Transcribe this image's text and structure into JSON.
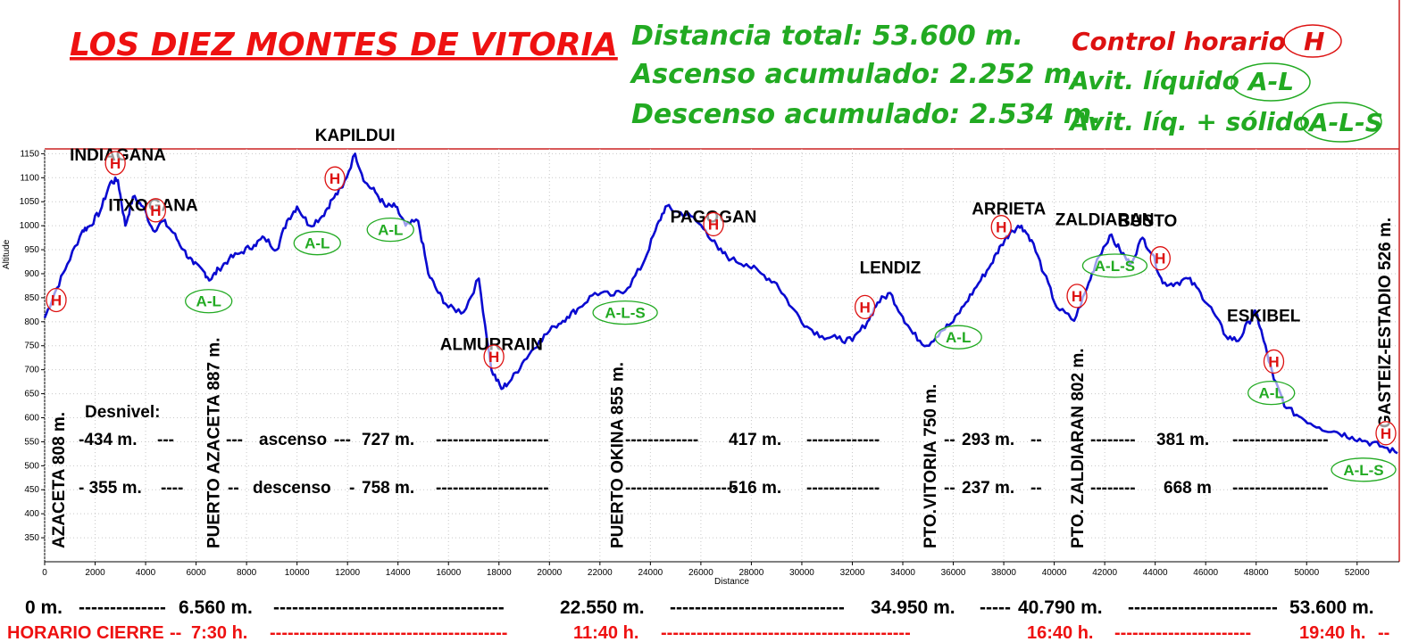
{
  "header": {
    "title": "LOS DIEZ MONTES DE VITORIA",
    "stats": [
      "Distancia total: 53.600 m.",
      "Ascenso acumulado: 2.252 m.",
      "Descenso acumulado: 2.534 m."
    ],
    "legend": [
      {
        "text": "Control horario",
        "badge": "H",
        "color": "#dd1111"
      },
      {
        "text": "Avit. líquido",
        "badge": "A-L",
        "color": "#22aa22"
      },
      {
        "text": "Avit. líq. + sólido",
        "badge": "A-L-S",
        "color": "#22aa22"
      }
    ]
  },
  "chart_data": {
    "type": "line",
    "xlabel": "Distance",
    "ylabel": "Altitude",
    "xlim": [
      0,
      53600
    ],
    "ylim": [
      300,
      1160
    ],
    "xticks": [
      0,
      2000,
      4000,
      6000,
      8000,
      10000,
      12000,
      14000,
      16000,
      18000,
      20000,
      22000,
      24000,
      26000,
      28000,
      30000,
      32000,
      34000,
      36000,
      38000,
      40000,
      42000,
      44000,
      46000,
      48000,
      50000,
      52000
    ],
    "yticks": [
      350,
      400,
      450,
      500,
      550,
      600,
      650,
      700,
      750,
      800,
      850,
      900,
      950,
      1000,
      1050,
      1100,
      1150
    ],
    "line_color": "#0a0ad0",
    "series": [
      {
        "x": [
          0,
          400,
          900,
          1500,
          1800,
          2200,
          2600,
          2900,
          3200,
          3500,
          3900,
          4300,
          4700,
          5100,
          5500,
          5900,
          6300,
          6560,
          6900,
          7300,
          7800,
          8300,
          8700,
          9200,
          9600,
          10000,
          10500,
          11000,
          11400,
          11800,
          12300,
          12700,
          13100,
          13500,
          13900,
          14300,
          14800,
          15200,
          15600,
          16000,
          16600,
          17200,
          17700,
          18100,
          18500,
          19000,
          19600,
          20200,
          20700,
          21200,
          21800,
          22550,
          23100,
          23700,
          24200,
          24600,
          25000,
          25600,
          26200,
          26700,
          27200,
          27800,
          28400,
          29000,
          29600,
          30200,
          30800,
          31400,
          32000,
          32600,
          33000,
          33500,
          34000,
          34400,
          34950,
          35500,
          36000,
          36500,
          37000,
          37500,
          37900,
          38300,
          38700,
          39100,
          39600,
          40100,
          40790,
          41300,
          41700,
          42200,
          42600,
          43000,
          43500,
          43900,
          44300,
          44800,
          45300,
          45800,
          46300,
          46800,
          47300,
          47700,
          48000,
          48300,
          48700,
          49200,
          49800,
          50500,
          51200,
          51800,
          52400,
          53000,
          53600
        ],
        "y": [
          808,
          860,
          920,
          990,
          1000,
          1030,
          1090,
          1095,
          1000,
          1060,
          1040,
          990,
          1010,
          985,
          950,
          920,
          905,
          887,
          910,
          930,
          945,
          960,
          975,
          950,
          1010,
          1040,
          1000,
          1020,
          1055,
          1080,
          1150,
          1090,
          1070,
          1040,
          1040,
          1000,
          1010,
          900,
          860,
          830,
          820,
          890,
          700,
          660,
          680,
          720,
          760,
          790,
          810,
          830,
          860,
          855,
          870,
          920,
          990,
          1040,
          1030,
          1020,
          990,
          950,
          930,
          920,
          900,
          880,
          830,
          790,
          770,
          765,
          760,
          800,
          840,
          860,
          810,
          775,
          750,
          780,
          800,
          840,
          880,
          920,
          960,
          990,
          1000,
          970,
          900,
          830,
          802,
          870,
          930,
          980,
          950,
          920,
          975,
          940,
          880,
          880,
          890,
          860,
          820,
          770,
          760,
          800,
          820,
          760,
          680,
          620,
          600,
          580,
          570,
          560,
          550,
          540,
          526
        ]
      }
    ],
    "peaks": [
      {
        "name": "INDIAGANA",
        "x": 2900
      },
      {
        "name": "ITXOGANA",
        "x": 4300
      },
      {
        "name": "KAPILDUI",
        "x": 12300
      },
      {
        "name": "ALMURRAIN",
        "x": 17700
      },
      {
        "name": "PAGOGAN",
        "x": 26500
      },
      {
        "name": "LENDIZ",
        "x": 33500
      },
      {
        "name": "ARRIETA",
        "x": 38200
      },
      {
        "name": "ZALDIARAN",
        "x": 42000
      },
      {
        "name": "BUSTO",
        "x": 43700
      },
      {
        "name": "ESKIBEL",
        "x": 48300
      }
    ],
    "passes": [
      {
        "label": "AZACETA 808 m.",
        "x": 0
      },
      {
        "label": "PUERTO AZACETA 887 m.",
        "x": 6560
      },
      {
        "label": "PUERTO OKINA 855 m.",
        "x": 22550
      },
      {
        "label": "PTO.VITORIA 750 m.",
        "x": 34950
      },
      {
        "label": "PTO. ZALDIARAN 802 m.",
        "x": 40790
      },
      {
        "label": "GASTEIZ-ESTADIO 526 m.",
        "x": 53600
      }
    ],
    "markers": [
      {
        "text": "H",
        "type": "H",
        "x": 0
      },
      {
        "text": "H",
        "type": "H",
        "x": 2800
      },
      {
        "text": "H",
        "type": "H",
        "x": 4400
      },
      {
        "text": "H",
        "type": "H",
        "x": 11500
      },
      {
        "text": "H",
        "type": "H",
        "x": 17800
      },
      {
        "text": "H",
        "type": "H",
        "x": 26500
      },
      {
        "text": "H",
        "type": "H",
        "x": 32500
      },
      {
        "text": "H",
        "type": "H",
        "x": 37900
      },
      {
        "text": "H",
        "type": "H",
        "x": 40900
      },
      {
        "text": "H",
        "type": "H",
        "x": 44200
      },
      {
        "text": "H",
        "type": "H",
        "x": 48700
      },
      {
        "text": "H",
        "type": "H",
        "x": 53400
      },
      {
        "text": "A-L",
        "type": "AL",
        "x": 6500
      },
      {
        "text": "A-L",
        "type": "AL",
        "x": 10800
      },
      {
        "text": "A-L",
        "type": "AL",
        "x": 13700
      },
      {
        "text": "A-L-S",
        "type": "ALS",
        "x": 23000
      },
      {
        "text": "A-L",
        "type": "AL",
        "x": 36200
      },
      {
        "text": "A-L-S",
        "type": "ALS",
        "x": 42400
      },
      {
        "text": "A-L",
        "type": "AL",
        "x": 48600
      },
      {
        "text": "A-L-S",
        "type": "ALS",
        "x": 53000
      }
    ],
    "desnivel": {
      "label": "Desnivel:",
      "ascenso_label": "ascenso",
      "descenso_label": "descenso",
      "ascenso": [
        "-434 m.",
        "727 m.",
        "417 m.",
        "293 m.",
        "381 m."
      ],
      "descenso": [
        "- 355 m.",
        "758 m.",
        "516 m.",
        "237 m.",
        "668 m"
      ]
    }
  },
  "footer": {
    "distances": [
      "0 m.",
      "6.560 m.",
      "22.550 m.",
      "34.950 m.",
      "40.790 m.",
      "53.600 m."
    ],
    "horario_label": "HORARIO CIERRE",
    "horario": [
      "7:30 h.",
      "11:40 h.",
      "16:40 h.",
      "19:40 h."
    ]
  }
}
